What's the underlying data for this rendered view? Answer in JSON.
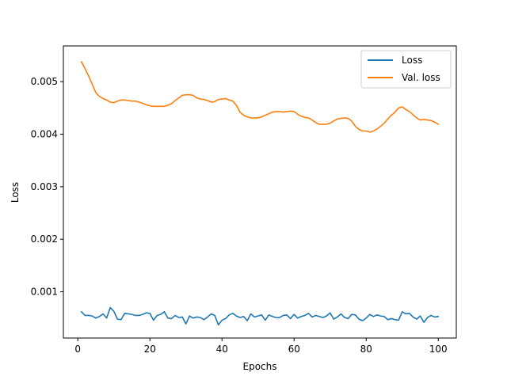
{
  "chart_data": {
    "type": "line",
    "xlabel": "Epochs",
    "ylabel": "Loss",
    "xlim": [
      -4,
      105
    ],
    "ylim": [
      0.00012,
      0.00568
    ],
    "xticks": [
      0,
      20,
      40,
      60,
      80,
      100
    ],
    "yticks": [
      0.001,
      0.002,
      0.003,
      0.004,
      0.005
    ],
    "ytick_labels": [
      "0.001",
      "0.002",
      "0.003",
      "0.004",
      "0.005"
    ],
    "grid": false,
    "legend_position": "top-right",
    "series": [
      {
        "name": "Loss",
        "color": "#1f77b4",
        "x": [
          1,
          2,
          3,
          4,
          5,
          6,
          7,
          8,
          9,
          10,
          11,
          12,
          13,
          14,
          15,
          16,
          17,
          18,
          19,
          20,
          21,
          22,
          23,
          24,
          25,
          26,
          27,
          28,
          29,
          30,
          31,
          32,
          33,
          34,
          35,
          36,
          37,
          38,
          39,
          40,
          41,
          42,
          43,
          44,
          45,
          46,
          47,
          48,
          49,
          50,
          51,
          52,
          53,
          54,
          55,
          56,
          57,
          58,
          59,
          60,
          61,
          62,
          63,
          64,
          65,
          66,
          67,
          68,
          69,
          70,
          71,
          72,
          73,
          74,
          75,
          76,
          77,
          78,
          79,
          80,
          81,
          82,
          83,
          84,
          85,
          86,
          87,
          88,
          89,
          90,
          91,
          92,
          93,
          94,
          95,
          96,
          97,
          98,
          99,
          100
        ],
        "y": [
          0.00062,
          0.00055,
          0.00055,
          0.00054,
          0.0005,
          0.00053,
          0.00058,
          0.0005,
          0.0007,
          0.00063,
          0.00048,
          0.00047,
          0.00059,
          0.00058,
          0.00057,
          0.00055,
          0.00055,
          0.00057,
          0.0006,
          0.00059,
          0.00046,
          0.00055,
          0.00057,
          0.00062,
          0.0005,
          0.00049,
          0.00055,
          0.00051,
          0.00052,
          0.00039,
          0.00054,
          0.0005,
          0.00052,
          0.00051,
          0.00047,
          0.00052,
          0.00058,
          0.00055,
          0.00037,
          0.00046,
          0.00049,
          0.00056,
          0.00059,
          0.00054,
          0.00051,
          0.00053,
          0.00045,
          0.00058,
          0.00052,
          0.00054,
          0.00056,
          0.00046,
          0.00056,
          0.00053,
          0.00051,
          0.00051,
          0.00055,
          0.00056,
          0.00049,
          0.00057,
          0.0005,
          0.00053,
          0.00055,
          0.00059,
          0.00052,
          0.00055,
          0.00053,
          0.00051,
          0.00054,
          0.0006,
          0.00048,
          0.00052,
          0.00058,
          0.00051,
          0.00049,
          0.00057,
          0.00056,
          0.00048,
          0.00045,
          0.0005,
          0.00057,
          0.00053,
          0.00056,
          0.00054,
          0.00053,
          0.00047,
          0.00049,
          0.00047,
          0.00046,
          0.00062,
          0.00058,
          0.00059,
          0.00052,
          0.00048,
          0.00054,
          0.00042,
          0.00051,
          0.00055,
          0.00052,
          0.00053
        ]
      },
      {
        "name": "Val. loss",
        "color": "#ff7f0e",
        "x": [
          1,
          2,
          3,
          4,
          5,
          6,
          7,
          8,
          9,
          10,
          11,
          12,
          13,
          14,
          15,
          16,
          17,
          18,
          19,
          20,
          21,
          22,
          23,
          24,
          25,
          26,
          27,
          28,
          29,
          30,
          31,
          32,
          33,
          34,
          35,
          36,
          37,
          38,
          39,
          40,
          41,
          42,
          43,
          44,
          45,
          46,
          47,
          48,
          49,
          50,
          51,
          52,
          53,
          54,
          55,
          56,
          57,
          58,
          59,
          60,
          61,
          62,
          63,
          64,
          65,
          66,
          67,
          68,
          69,
          70,
          71,
          72,
          73,
          74,
          75,
          76,
          77,
          78,
          79,
          80,
          81,
          82,
          83,
          84,
          85,
          86,
          87,
          88,
          89,
          90,
          91,
          92,
          93,
          94,
          95,
          96,
          97,
          98,
          99,
          100
        ],
        "y": [
          0.00538,
          0.00525,
          0.00511,
          0.00495,
          0.00479,
          0.00472,
          0.00468,
          0.00465,
          0.00461,
          0.0046,
          0.00463,
          0.00465,
          0.00465,
          0.00464,
          0.00463,
          0.00463,
          0.00461,
          0.00459,
          0.00456,
          0.00454,
          0.00453,
          0.00453,
          0.00453,
          0.00453,
          0.00455,
          0.00458,
          0.00464,
          0.00469,
          0.00474,
          0.00475,
          0.00475,
          0.00474,
          0.00469,
          0.00467,
          0.00466,
          0.00464,
          0.00461,
          0.00462,
          0.00466,
          0.00467,
          0.00468,
          0.00465,
          0.00463,
          0.00455,
          0.00442,
          0.00436,
          0.00433,
          0.00431,
          0.00431,
          0.00431,
          0.00433,
          0.00436,
          0.00439,
          0.00442,
          0.00443,
          0.00443,
          0.00442,
          0.00443,
          0.00444,
          0.00443,
          0.00438,
          0.00434,
          0.00432,
          0.00431,
          0.00427,
          0.00422,
          0.00419,
          0.00419,
          0.00419,
          0.00421,
          0.00425,
          0.00429,
          0.0043,
          0.00431,
          0.0043,
          0.00425,
          0.00415,
          0.00409,
          0.00406,
          0.00406,
          0.00404,
          0.00406,
          0.0041,
          0.00415,
          0.00421,
          0.00429,
          0.00436,
          0.00442,
          0.0045,
          0.00452,
          0.00447,
          0.00443,
          0.00437,
          0.00431,
          0.00427,
          0.00428,
          0.00427,
          0.00426,
          0.00423,
          0.00419
        ]
      }
    ]
  }
}
